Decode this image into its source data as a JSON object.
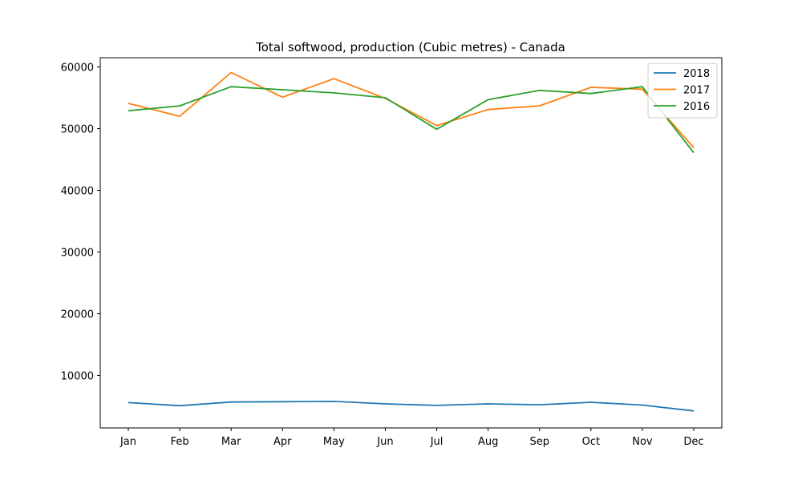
{
  "chart_data": {
    "type": "line",
    "title": "Total softwood, production (Cubic metres) - Canada",
    "xlabel": "",
    "ylabel": "",
    "categories": [
      "Jan",
      "Feb",
      "Mar",
      "Apr",
      "May",
      "Jun",
      "Jul",
      "Aug",
      "Sep",
      "Oct",
      "Nov",
      "Dec"
    ],
    "ylim": [
      1500,
      61500
    ],
    "yticks": [
      10000,
      20000,
      30000,
      40000,
      50000,
      60000
    ],
    "grid": false,
    "legend_position": "top-right",
    "series": [
      {
        "name": "2018",
        "color": "#1f77b4",
        "values": [
          5600,
          5100,
          5700,
          5750,
          5800,
          5400,
          5150,
          5400,
          5250,
          5650,
          5200,
          4250
        ]
      },
      {
        "name": "2017",
        "color": "#ff7f0e",
        "values": [
          54100,
          52000,
          59100,
          55100,
          58100,
          54900,
          50500,
          53100,
          53700,
          56700,
          56400,
          46900
        ]
      },
      {
        "name": "2016",
        "color": "#2ca02c",
        "values": [
          52900,
          53700,
          56800,
          56300,
          55800,
          55000,
          49900,
          54700,
          56200,
          55700,
          56800,
          46100
        ]
      }
    ]
  }
}
